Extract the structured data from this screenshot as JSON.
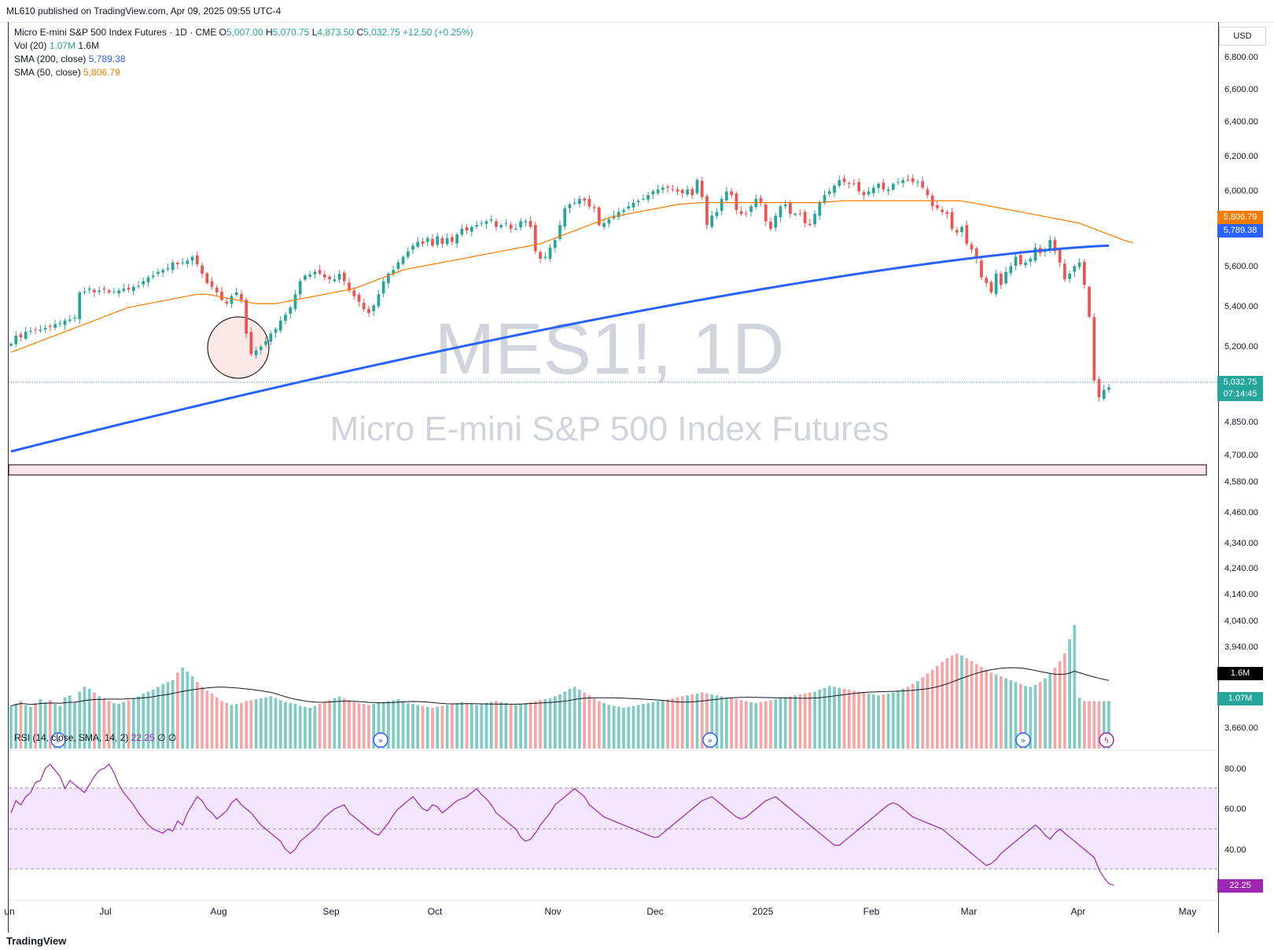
{
  "header": {
    "published": "ML610 published on TradingView.com, Apr 09, 2025 09:55 UTC-4"
  },
  "footer": {
    "brand": "TradingView"
  },
  "legend": {
    "symbol": "Micro E-mini S&P 500 Index Futures · 1D · CME",
    "o_label": "O",
    "o": "5,007.00",
    "h_label": "H",
    "h": "5,070.75",
    "l_label": "L",
    "l": "4,873.50",
    "c_label": "C",
    "c": "5,032.75",
    "change": "+12.50 (+0.25%)",
    "vol_label": "Vol (20)",
    "vol": "1.07M",
    "vol_ma": "1.6M",
    "sma200_label": "SMA (200, close)",
    "sma200": "5,789.38",
    "sma50_label": "SMA (50, close)",
    "sma50": "5,806.79",
    "rsi_label": "RSI (14, close, SMA, 14, 2)",
    "rsi": "22.25",
    "rsi_extra": "∅ ∅"
  },
  "currency": "USD",
  "watermark": {
    "ticker": "MES1!, 1D",
    "name": "Micro E-mini S&P 500 Index Futures"
  },
  "price_tags": {
    "sma50": "5,806.79",
    "sma200": "5,789.38",
    "last": "5,032.75",
    "countdown": "07:14:45",
    "vol_ma": "1.6M",
    "vol": "1.07M",
    "rsi": "22.25"
  },
  "colors": {
    "up": "#26a69a",
    "down": "#ef5350",
    "sma200": "#2962ff",
    "sma50": "#f57c00",
    "rsi": "#9c27b0",
    "rsi_band": "#f3e5fc"
  },
  "chart_data": {
    "type": "candlestick",
    "title": "Micro E-mini S&P 500 Index Futures",
    "price_axis": [
      "6,800.00",
      "6,600.00",
      "6,400.00",
      "6,200.00",
      "6,000.00",
      "5,800.00",
      "5,600.00",
      "5,400.00",
      "5,200.00",
      "4,850.00",
      "4,700.00",
      "4,580.00",
      "4,460.00",
      "4,340.00",
      "4,240.00",
      "4,140.00",
      "4,040.00",
      "3,940.00",
      "3,660.00"
    ],
    "rsi_axis": [
      "80.00",
      "60.00",
      "40.00"
    ],
    "time_axis": [
      "un",
      "Jul",
      "Aug",
      "Sep",
      "Oct",
      "Nov",
      "Dec",
      "2025",
      "Feb",
      "Mar",
      "Apr",
      "May"
    ],
    "scale_anchors": {
      "price_top": 6800,
      "price_bottom": 4850,
      "rsi_high": 80,
      "rsi_low": 40
    },
    "closes": [
      5265,
      5310,
      5300,
      5330,
      5335,
      5340,
      5340,
      5350,
      5355,
      5370,
      5375,
      5390,
      5395,
      5405,
      5540,
      5545,
      5560,
      5540,
      5550,
      5555,
      5540,
      5545,
      5550,
      5560,
      5555,
      5570,
      5575,
      5600,
      5620,
      5630,
      5650,
      5660,
      5670,
      5700,
      5690,
      5700,
      5710,
      5730,
      5690,
      5640,
      5590,
      5570,
      5540,
      5500,
      5480,
      5520,
      5540,
      5500,
      5320,
      5210,
      5230,
      5250,
      5280,
      5320,
      5345,
      5390,
      5420,
      5460,
      5530,
      5600,
      5630,
      5635,
      5650,
      5640,
      5620,
      5610,
      5610,
      5640,
      5600,
      5550,
      5520,
      5490,
      5450,
      5430,
      5470,
      5530,
      5600,
      5640,
      5660,
      5700,
      5730,
      5760,
      5790,
      5810,
      5800,
      5830,
      5790,
      5840,
      5800,
      5830,
      5810,
      5850,
      5880,
      5870,
      5890,
      5900,
      5910,
      5920,
      5930,
      5890,
      5900,
      5910,
      5880,
      5880,
      5920,
      5920,
      5890,
      5760,
      5720,
      5730,
      5780,
      5820,
      5900,
      5990,
      6010,
      6020,
      6040,
      6030,
      6000,
      5990,
      5900,
      5910,
      5930,
      5950,
      5970,
      5980,
      6000,
      6020,
      6030,
      6040,
      6060,
      6080,
      6090,
      6100,
      6100,
      6090,
      6080,
      6070,
      6090,
      6060,
      6140,
      6050,
      5900,
      5950,
      5970,
      6040,
      6080,
      6060,
      5980,
      5960,
      5960,
      6000,
      6040,
      6020,
      5920,
      5880,
      5950,
      6000,
      6010,
      5960,
      5960,
      5960,
      5910,
      5900,
      5960,
      6020,
      6060,
      6080,
      6110,
      6140,
      6130,
      6120,
      6120,
      6080,
      6060,
      6080,
      6100,
      6120,
      6090,
      6090,
      6120,
      6130,
      6140,
      6140,
      6130,
      6130,
      6100,
      6060,
      6000,
      5990,
      5970,
      5960,
      5880,
      5860,
      5890,
      5800,
      5770,
      5720,
      5620,
      5590,
      5540,
      5640,
      5580,
      5650,
      5680,
      5730,
      5690,
      5700,
      5720,
      5780,
      5750,
      5770,
      5820,
      5760,
      5700,
      5610,
      5640,
      5680,
      5700,
      5580,
      5410,
      5070,
      4980,
      5020,
      5032.75
    ],
    "sma50": [
      5220,
      5230,
      5240,
      5250,
      5260,
      5270,
      5280,
      5290,
      5300,
      5310,
      5320,
      5330,
      5340,
      5350,
      5360,
      5370,
      5380,
      5390,
      5400,
      5410,
      5420,
      5430,
      5440,
      5450,
      5460,
      5465,
      5470,
      5475,
      5480,
      5485,
      5490,
      5495,
      5500,
      5505,
      5510,
      5515,
      5520,
      5525,
      5530,
      5530,
      5530,
      5525,
      5520,
      5515,
      5510,
      5505,
      5500,
      5495,
      5490,
      5485,
      5480,
      5480,
      5480,
      5480,
      5480,
      5485,
      5490,
      5495,
      5500,
      5505,
      5510,
      5515,
      5520,
      5525,
      5530,
      5535,
      5540,
      5545,
      5550,
      5555,
      5560,
      5570,
      5580,
      5590,
      5600,
      5610,
      5620,
      5630,
      5640,
      5650,
      5660,
      5665,
      5670,
      5675,
      5680,
      5685,
      5690,
      5695,
      5700,
      5705,
      5710,
      5715,
      5720,
      5725,
      5730,
      5735,
      5740,
      5745,
      5750,
      5755,
      5760,
      5765,
      5770,
      5775,
      5780,
      5785,
      5790,
      5795,
      5800,
      5810,
      5820,
      5830,
      5840,
      5850,
      5860,
      5870,
      5880,
      5890,
      5900,
      5910,
      5920,
      5930,
      5940,
      5945,
      5950,
      5955,
      5960,
      5965,
      5970,
      5975,
      5980,
      5985,
      5990,
      5995,
      6000,
      6005,
      6010,
      6012,
      6014,
      6016,
      6018,
      6020,
      6020,
      6020,
      6020,
      6020,
      6020,
      6020,
      6020,
      6020,
      6020,
      6020,
      6020,
      6020,
      6020,
      6020,
      6020,
      6020,
      6020,
      6020,
      6020,
      6020,
      6020,
      6020,
      6020,
      6020,
      6022,
      6024,
      6026,
      6028,
      6030,
      6030,
      6030,
      6030,
      6030,
      6030,
      6030,
      6030,
      6030,
      6030,
      6030,
      6030,
      6030,
      6030,
      6030,
      6030,
      6030,
      6030,
      6030,
      6030,
      6030,
      6030,
      6030,
      6030,
      6028,
      6024,
      6020,
      6015,
      6010,
      6005,
      6000,
      5995,
      5990,
      5985,
      5980,
      5975,
      5970,
      5965,
      5960,
      5955,
      5950,
      5945,
      5940,
      5935,
      5930,
      5925,
      5920,
      5915,
      5910,
      5900,
      5890,
      5880,
      5870,
      5860,
      5850,
      5840,
      5830,
      5820,
      5810,
      5806.79
    ],
    "sma200_start": 4690,
    "sma200_end": 5789.38,
    "rsi_values": [
      58,
      64,
      62,
      66,
      68,
      73,
      74,
      80,
      82,
      79,
      76,
      70,
      74,
      72,
      70,
      68,
      72,
      76,
      79,
      80,
      82,
      78,
      72,
      68,
      65,
      62,
      58,
      55,
      52,
      50,
      49,
      48,
      50,
      49,
      54,
      52,
      58,
      62,
      66,
      64,
      60,
      58,
      55,
      57,
      59,
      63,
      65,
      62,
      60,
      58,
      55,
      52,
      50,
      48,
      46,
      44,
      40,
      38,
      40,
      44,
      46,
      48,
      50,
      53,
      56,
      58,
      60,
      61,
      62,
      58,
      56,
      54,
      52,
      50,
      48,
      47,
      50,
      53,
      57,
      60,
      62,
      64,
      66,
      63,
      60,
      59,
      62,
      61,
      58,
      60,
      62,
      64,
      65,
      66,
      68,
      70,
      67,
      65,
      62,
      58,
      56,
      54,
      52,
      50,
      46,
      44,
      45,
      48,
      52,
      55,
      58,
      62,
      64,
      66,
      68,
      70,
      68,
      66,
      62,
      60,
      58,
      56,
      55,
      54,
      53,
      52,
      51,
      50,
      49,
      48,
      47,
      46,
      46,
      48,
      50,
      52,
      54,
      56,
      58,
      60,
      62,
      64,
      65,
      66,
      64,
      62,
      60,
      58,
      56,
      55,
      56,
      58,
      60,
      62,
      64,
      65,
      66,
      64,
      62,
      60,
      58,
      56,
      54,
      52,
      50,
      48,
      46,
      44,
      42,
      42,
      44,
      46,
      48,
      50,
      52,
      54,
      56,
      58,
      60,
      62,
      63,
      62,
      60,
      58,
      56,
      55,
      54,
      53,
      52,
      51,
      50,
      48,
      46,
      44,
      42,
      40,
      38,
      36,
      34,
      32,
      33,
      35,
      38,
      40,
      42,
      44,
      46,
      48,
      50,
      52,
      50,
      47,
      45,
      48,
      50,
      48,
      46,
      44,
      42,
      40,
      38,
      36,
      30,
      26,
      23,
      22.25
    ],
    "vol_values": [
      0.9,
      0.95,
      1.0,
      0.92,
      0.88,
      0.96,
      1.04,
      0.98,
      1.02,
      0.94,
      0.9,
      1.08,
      1.12,
      0.98,
      1.2,
      1.3,
      1.26,
      1.18,
      1.1,
      1.06,
      1.0,
      0.96,
      0.94,
      0.98,
      1.02,
      1.06,
      1.1,
      1.16,
      1.2,
      1.24,
      1.3,
      1.36,
      1.4,
      1.44,
      1.6,
      1.7,
      1.62,
      1.52,
      1.4,
      1.3,
      1.22,
      1.16,
      1.08,
      1.0,
      0.96,
      0.92,
      0.94,
      0.96,
      1.0,
      1.02,
      1.04,
      1.06,
      1.08,
      1.1,
      1.06,
      1.02,
      0.98,
      0.96,
      0.94,
      0.9,
      0.88,
      0.86,
      0.9,
      0.94,
      0.98,
      1.02,
      1.06,
      1.1,
      1.06,
      1.02,
      0.98,
      0.96,
      0.94,
      0.92,
      0.94,
      0.96,
      0.98,
      1.0,
      1.02,
      1.04,
      1.0,
      0.96,
      0.94,
      0.92,
      0.9,
      0.88,
      0.86,
      0.88,
      0.9,
      0.92,
      0.94,
      0.96,
      0.98,
      0.96,
      0.94,
      0.92,
      0.94,
      0.96,
      0.98,
      1.0,
      0.98,
      0.96,
      0.94,
      0.92,
      0.94,
      0.96,
      0.98,
      1.0,
      1.02,
      1.04,
      1.06,
      1.1,
      1.14,
      1.2,
      1.26,
      1.3,
      1.24,
      1.18,
      1.12,
      1.06,
      1.0,
      0.96,
      0.92,
      0.9,
      0.88,
      0.86,
      0.88,
      0.9,
      0.92,
      0.94,
      0.96,
      0.98,
      1.0,
      1.02,
      1.04,
      1.06,
      1.08,
      1.1,
      1.12,
      1.14,
      1.16,
      1.18,
      1.16,
      1.14,
      1.12,
      1.1,
      1.08,
      1.06,
      1.04,
      1.02,
      1.0,
      0.98,
      0.96,
      0.98,
      1.0,
      1.02,
      1.04,
      1.06,
      1.08,
      1.1,
      1.12,
      1.14,
      1.16,
      1.18,
      1.2,
      1.24,
      1.28,
      1.32,
      1.3,
      1.28,
      1.26,
      1.24,
      1.22,
      1.2,
      1.18,
      1.16,
      1.14,
      1.12,
      1.14,
      1.16,
      1.18,
      1.22,
      1.26,
      1.3,
      1.36,
      1.42,
      1.5,
      1.58,
      1.66,
      1.74,
      1.82,
      1.9,
      1.96,
      2.0,
      1.96,
      1.9,
      1.84,
      1.78,
      1.72,
      1.66,
      1.6,
      1.56,
      1.52,
      1.48,
      1.44,
      1.4,
      1.36,
      1.32,
      1.3,
      1.34,
      1.4,
      1.48,
      1.58,
      1.7,
      1.84,
      2.0,
      2.3,
      2.6,
      1.07
    ]
  }
}
